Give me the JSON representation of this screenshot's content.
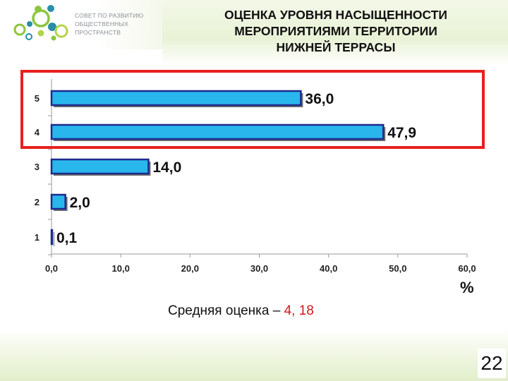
{
  "brand": {
    "lines": [
      "СОВЕТ ПО РАЗВИТИЮ",
      "ОБЩЕСТВЕННЫХ",
      "ПРОСТРАНСТВ"
    ],
    "colors": {
      "green": "#8cc63f",
      "teal": "#2a8ea6",
      "lime": "#b5d34a"
    }
  },
  "title": {
    "lines": [
      "ОЦЕНКА УРОВНЯ НАСЫЩЕННОСТИ",
      "МЕРОПРИЯТИЯМИ ТЕРРИТОРИИ",
      "НИЖНЕЙ ТЕРРАСЫ"
    ]
  },
  "chart_data": {
    "type": "bar",
    "orientation": "horizontal",
    "categories": [
      "1",
      "2",
      "3",
      "4",
      "5"
    ],
    "values": [
      0.1,
      2.0,
      14.0,
      47.9,
      36.0
    ],
    "value_labels": [
      "0,1",
      "2,0",
      "14,0",
      "47,9",
      "36,0"
    ],
    "xlim": [
      0,
      60
    ],
    "xticks": [
      0,
      10,
      20,
      30,
      40,
      50,
      60
    ],
    "xtick_labels": [
      "0,0",
      "10,0",
      "20,0",
      "30,0",
      "40,0",
      "50,0",
      "60,0"
    ],
    "xlabel": "%",
    "grid": false,
    "highlighted_categories": [
      "4",
      "5"
    ],
    "colors": {
      "bar": "#29b6ec",
      "bar_edge": "#1c2a8c",
      "highlight": "#e8201e"
    }
  },
  "summary": {
    "label": "Средняя оценка – ",
    "value": "4, 18"
  },
  "page_number": "22"
}
